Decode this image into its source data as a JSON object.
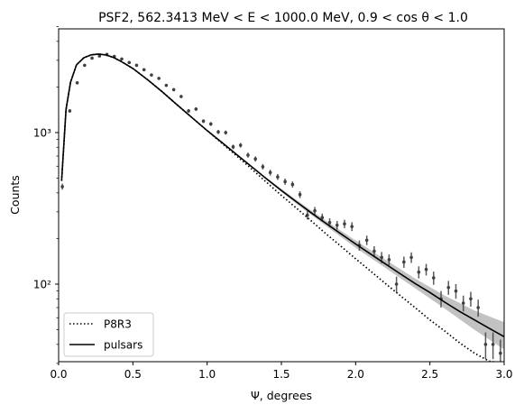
{
  "chart_data": {
    "type": "line",
    "title": "PSF2, 562.3413 MeV < E < 1000.0 MeV, 0.9 < cos θ < 1.0",
    "xlabel": "Ψ, degrees",
    "ylabel": "Counts",
    "xlim": [
      0.0,
      3.0
    ],
    "ylim": [
      30,
      5000
    ],
    "yscale": "log",
    "x_ticks": [
      "0.0",
      "0.5",
      "1.0",
      "1.5",
      "2.0",
      "2.5",
      "3.0"
    ],
    "y_ticks": [
      "10²",
      "10³"
    ],
    "legend_position": "lower-left",
    "grid": false,
    "series": [
      {
        "name": "P8R3",
        "style": "dotted",
        "color": "#000000",
        "x": [
          0.02,
          0.05,
          0.08,
          0.12,
          0.17,
          0.22,
          0.27,
          0.32,
          0.37,
          0.42,
          0.5,
          0.6,
          0.7,
          0.8,
          0.9,
          1.0,
          1.1,
          1.2,
          1.3,
          1.4,
          1.5,
          1.6,
          1.7,
          1.8,
          1.9,
          2.0,
          2.1,
          2.2,
          2.3,
          2.4,
          2.5,
          2.6,
          2.7,
          2.8,
          2.9,
          3.0
        ],
        "y": [
          480,
          1420,
          2150,
          2800,
          3120,
          3260,
          3300,
          3250,
          3130,
          2950,
          2650,
          2230,
          1850,
          1520,
          1250,
          1030,
          850,
          700,
          575,
          470,
          385,
          318,
          262,
          215,
          178,
          147,
          122,
          101,
          84,
          70,
          58,
          49,
          41,
          35,
          31,
          30
        ]
      },
      {
        "name": "pulsars",
        "style": "solid",
        "color": "#000000",
        "x": [
          0.02,
          0.05,
          0.08,
          0.12,
          0.17,
          0.22,
          0.27,
          0.32,
          0.37,
          0.42,
          0.5,
          0.6,
          0.7,
          0.8,
          0.9,
          1.0,
          1.1,
          1.2,
          1.3,
          1.4,
          1.5,
          1.6,
          1.7,
          1.8,
          1.9,
          2.0,
          2.1,
          2.2,
          2.3,
          2.4,
          2.5,
          2.6,
          2.7,
          2.8,
          2.9,
          3.0
        ],
        "y": [
          480,
          1420,
          2150,
          2800,
          3120,
          3260,
          3300,
          3250,
          3130,
          2950,
          2650,
          2230,
          1850,
          1520,
          1250,
          1030,
          860,
          715,
          595,
          495,
          415,
          350,
          296,
          252,
          215,
          184,
          158,
          136,
          117,
          101,
          88,
          76,
          66,
          58,
          51,
          45
        ]
      }
    ],
    "confidence_band": {
      "color": "#bbbbbb",
      "x": [
        1.4,
        1.6,
        1.8,
        2.0,
        2.2,
        2.4,
        2.6,
        2.8,
        3.0
      ],
      "lower": [
        487,
        340,
        242,
        174,
        128,
        94,
        69,
        50,
        37
      ],
      "upper": [
        503,
        360,
        262,
        194,
        145,
        109,
        84,
        67,
        56
      ]
    },
    "data_points": {
      "color": "#404040",
      "x": [
        0.025,
        0.075,
        0.125,
        0.175,
        0.225,
        0.275,
        0.325,
        0.375,
        0.425,
        0.475,
        0.525,
        0.575,
        0.625,
        0.675,
        0.725,
        0.775,
        0.825,
        0.875,
        0.925,
        0.975,
        1.025,
        1.075,
        1.125,
        1.175,
        1.225,
        1.275,
        1.325,
        1.375,
        1.425,
        1.475,
        1.525,
        1.575,
        1.625,
        1.675,
        1.725,
        1.775,
        1.825,
        1.875,
        1.925,
        1.975,
        2.025,
        2.075,
        2.125,
        2.175,
        2.225,
        2.275,
        2.325,
        2.375,
        2.425,
        2.475,
        2.525,
        2.575,
        2.625,
        2.675,
        2.725,
        2.775,
        2.825,
        2.875,
        2.925,
        2.975
      ],
      "y": [
        440,
        1390,
        2130,
        2780,
        3100,
        3200,
        3280,
        3180,
        3060,
        2900,
        2780,
        2600,
        2400,
        2280,
        2050,
        1920,
        1730,
        1390,
        1430,
        1190,
        1140,
        1010,
        1000,
        805,
        825,
        710,
        670,
        595,
        545,
        510,
        475,
        455,
        390,
        285,
        305,
        275,
        255,
        245,
        250,
        240,
        180,
        195,
        165,
        150,
        145,
        100,
        140,
        150,
        120,
        125,
        110,
        80,
        95,
        90,
        75,
        80,
        70,
        40,
        40,
        35
      ],
      "err": [
        20,
        35,
        45,
        52,
        55,
        56,
        56,
        56,
        55,
        53,
        52,
        51,
        49,
        48,
        45,
        44,
        41,
        37,
        38,
        34,
        33,
        32,
        31,
        28,
        29,
        27,
        26,
        25,
        24,
        23,
        22,
        21,
        20,
        18,
        18,
        17,
        17,
        16,
        16,
        16,
        14,
        14,
        13,
        13,
        12,
        12,
        12,
        12,
        11,
        11,
        11,
        10,
        10,
        10,
        9,
        9,
        9,
        8,
        8,
        8
      ]
    }
  }
}
